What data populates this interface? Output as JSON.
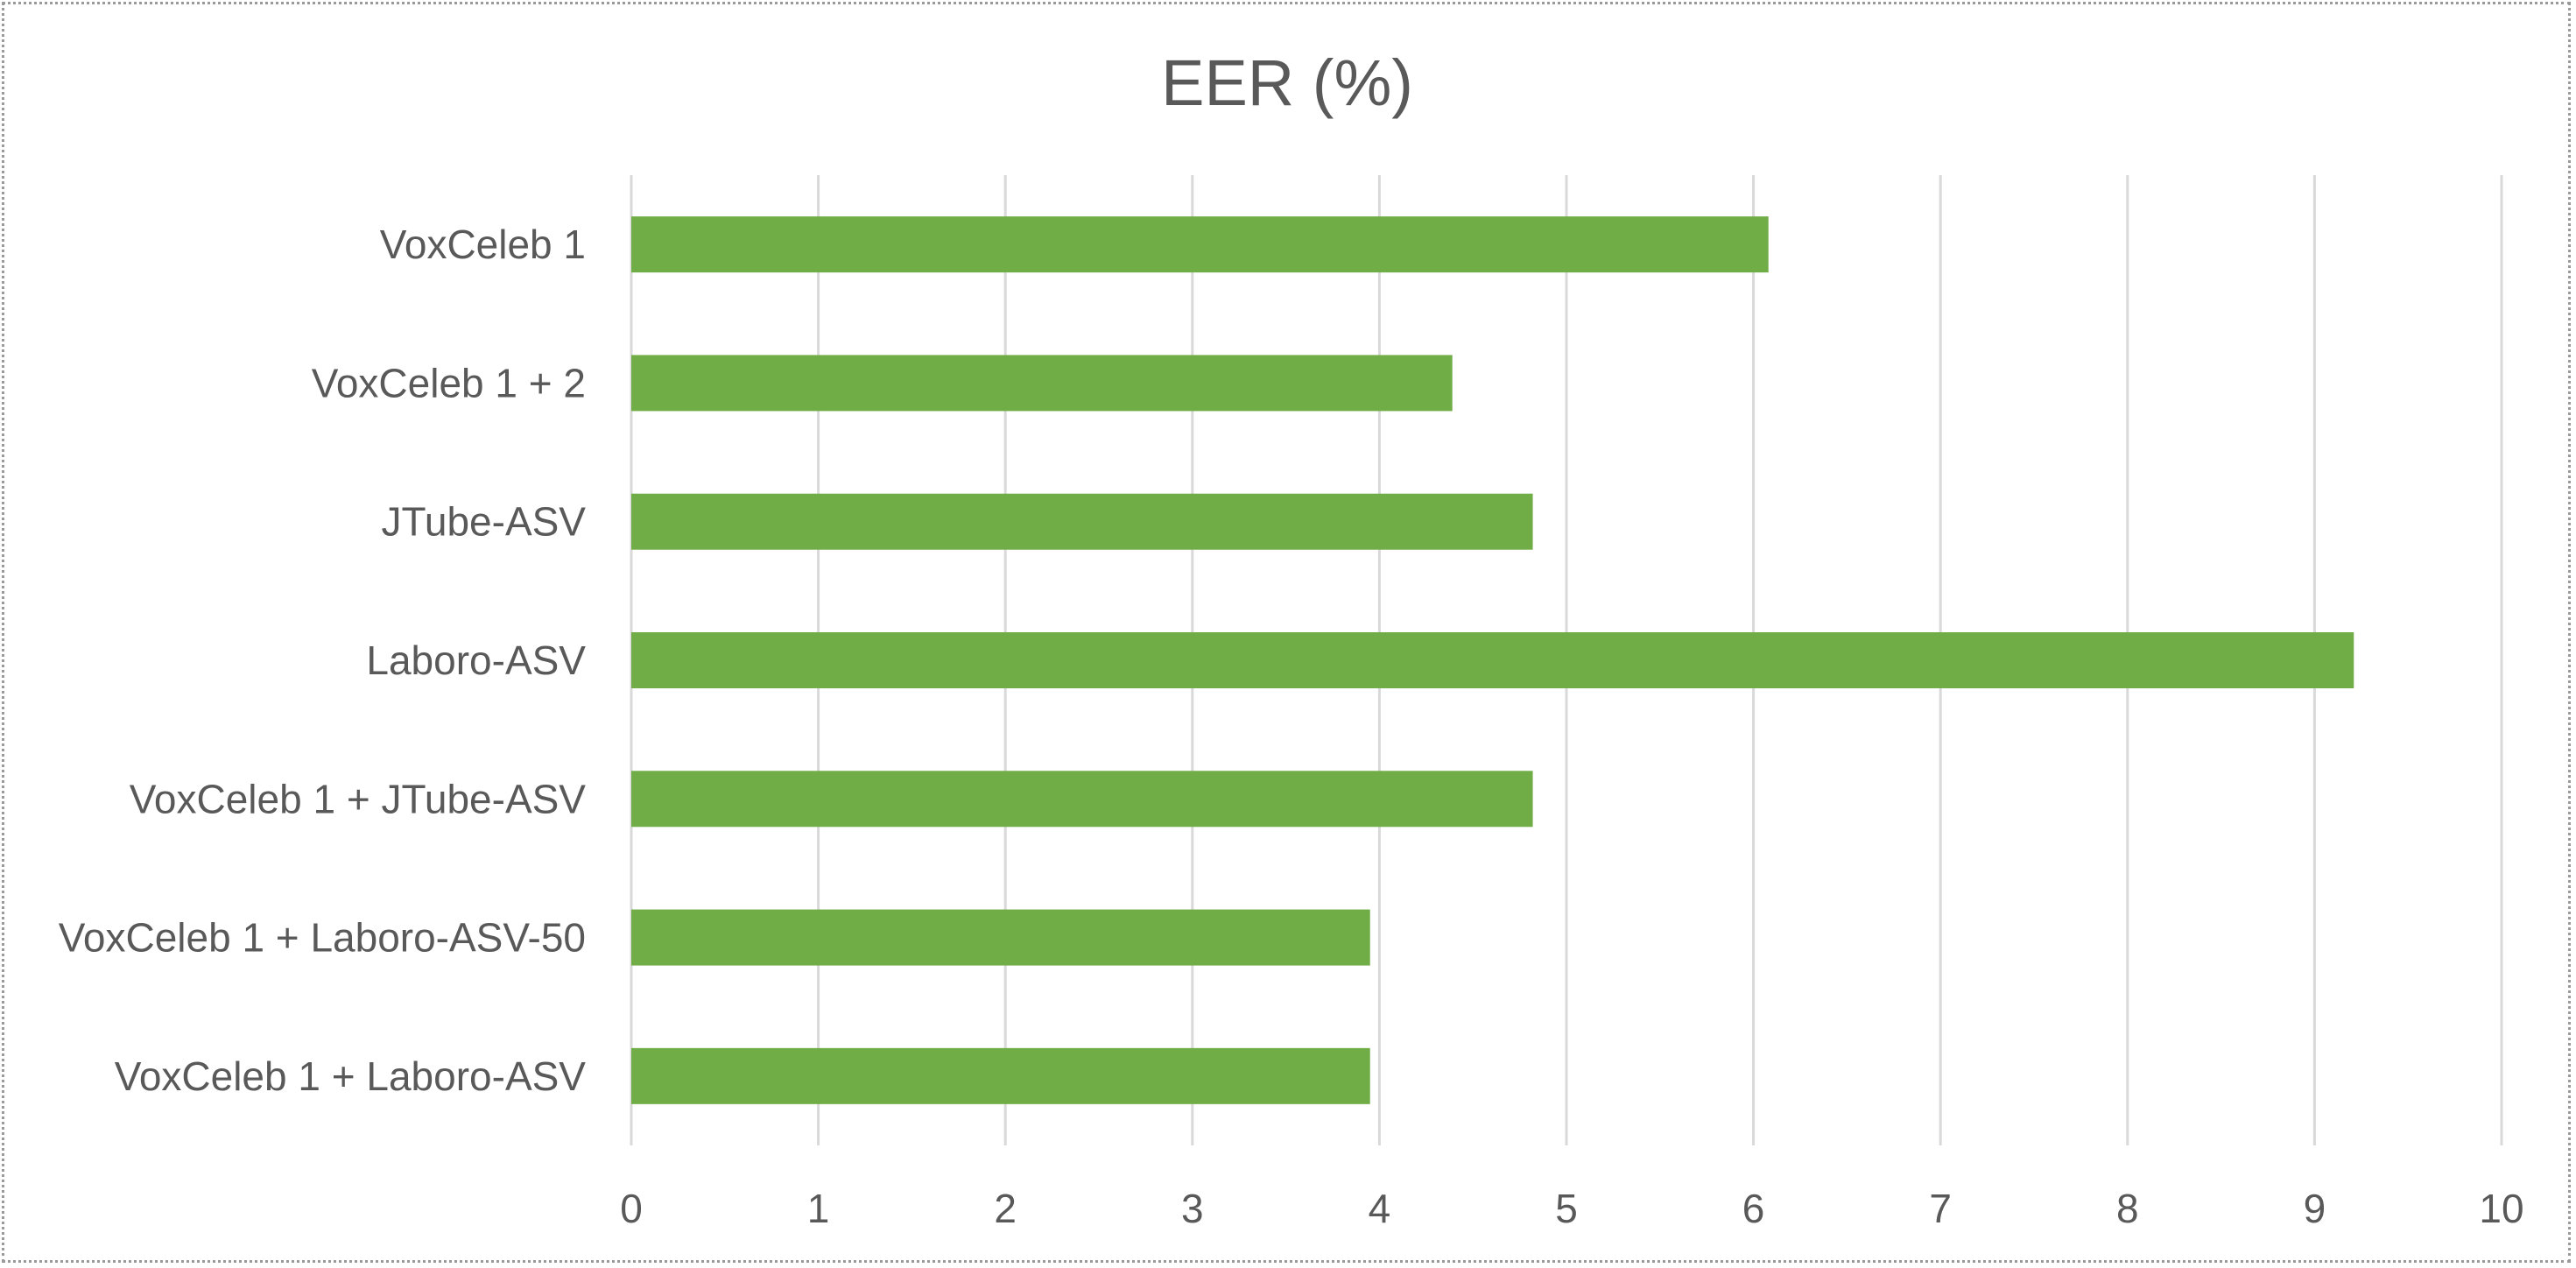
{
  "chart_data": {
    "type": "bar",
    "orientation": "horizontal",
    "title": "EER (%)",
    "xlabel": "",
    "ylabel": "",
    "categories": [
      "VoxCeleb 1",
      "VoxCeleb 1 + 2",
      "JTube-ASV",
      "Laboro-ASV",
      "VoxCeleb 1 + JTube-ASV",
      "VoxCeleb 1 + Laboro-ASV-50",
      "VoxCeleb 1 + Laboro-ASV"
    ],
    "values": [
      6.08,
      4.39,
      4.82,
      9.21,
      4.82,
      3.95,
      3.95
    ],
    "xlim": [
      0,
      10
    ],
    "xticks": [
      "0",
      "1",
      "2",
      "3",
      "4",
      "5",
      "6",
      "7",
      "8",
      "9",
      "10"
    ],
    "grid": true,
    "legend": "none",
    "bar_color": "#70ad47"
  }
}
